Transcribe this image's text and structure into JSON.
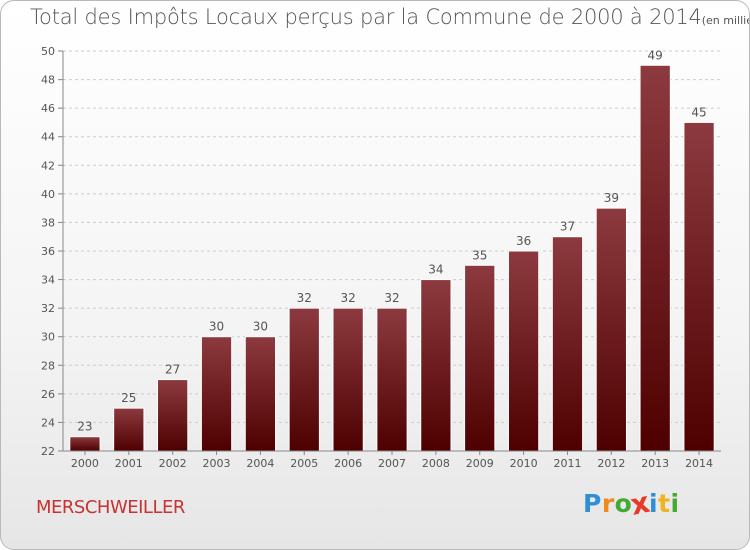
{
  "header": {
    "title": "Total des Impôts Locaux perçus par la Commune de 2000 à 2014",
    "unit": "(en milliers d'€)"
  },
  "commune": "MERSCHWEILLER",
  "logo": {
    "letters": [
      "P",
      "r",
      "o",
      "x",
      "i",
      "t",
      "i"
    ],
    "colors": [
      "#2e8fd6",
      "#f08a1c",
      "#44aa33",
      "#e83a2a",
      "#2e8fd6",
      "#f0b41c",
      "#44aa33"
    ]
  },
  "colors": {
    "bar_top": "#8c3a3f",
    "bar_bottom": "#4e0000",
    "grid": "#cccccc",
    "text": "#555555"
  },
  "chart_data": {
    "type": "bar",
    "title": "Total des Impôts Locaux perçus par la Commune de 2000 à 2014",
    "xlabel": "",
    "ylabel": "",
    "categories": [
      "2000",
      "2001",
      "2002",
      "2003",
      "2004",
      "2005",
      "2006",
      "2007",
      "2008",
      "2009",
      "2010",
      "2011",
      "2012",
      "2013",
      "2014"
    ],
    "values": [
      23,
      25,
      27,
      30,
      30,
      32,
      32,
      32,
      34,
      35,
      36,
      37,
      39,
      49,
      45
    ],
    "ylim": [
      22,
      50
    ],
    "yticks": [
      22,
      24,
      26,
      28,
      30,
      32,
      34,
      36,
      38,
      40,
      42,
      44,
      46,
      48,
      50
    ],
    "grid": true,
    "data_labels": true
  }
}
